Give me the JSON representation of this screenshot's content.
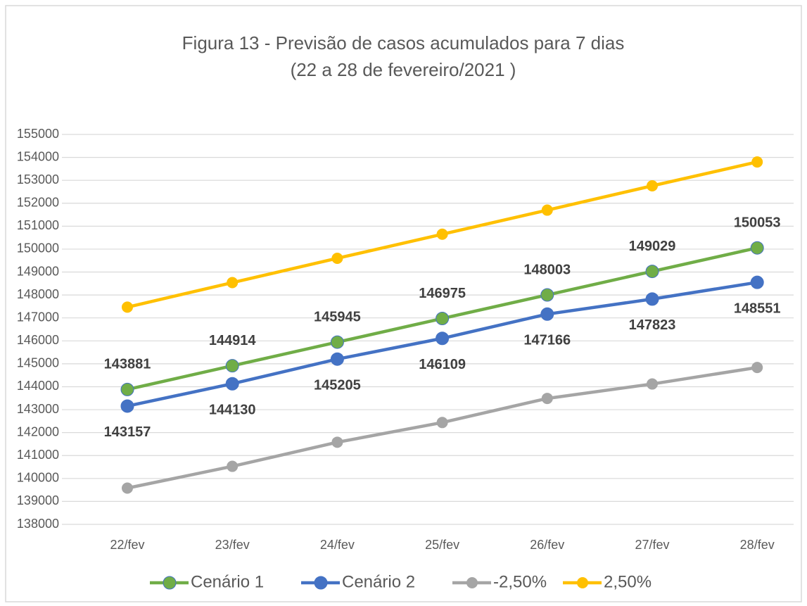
{
  "chart_data": {
    "type": "line",
    "title": "Figura 13 - Previsão de casos acumulados para 7 dias",
    "subtitle": "(22 a 28 de fevereiro/2021 )",
    "categories": [
      "22/fev",
      "23/fev",
      "24/fev",
      "25/fev",
      "26/fev",
      "27/fev",
      "28/fev"
    ],
    "series": [
      {
        "name": "Cenário 1",
        "color": "#70ad47",
        "values": [
          143881,
          144914,
          145945,
          146975,
          148003,
          149029,
          150053
        ],
        "data_labels": "above"
      },
      {
        "name": "Cenário 2",
        "color": "#4472c4",
        "values": [
          143157,
          144130,
          145205,
          146109,
          147166,
          147823,
          148551
        ],
        "data_labels": "below"
      },
      {
        "name": "-2,50%",
        "color": "#a5a5a5",
        "values": [
          139580,
          140530,
          141580,
          142440,
          143490,
          144120,
          144840
        ]
      },
      {
        "name": "2,50%",
        "color": "#ffc000",
        "values": [
          147470,
          148540,
          149600,
          150650,
          151700,
          152760,
          153800
        ]
      }
    ],
    "ylim": [
      138000,
      155000
    ],
    "yticks": [
      138000,
      139000,
      140000,
      141000,
      142000,
      143000,
      144000,
      145000,
      146000,
      147000,
      148000,
      149000,
      150000,
      151000,
      152000,
      153000,
      154000,
      155000
    ],
    "grid": true,
    "legend": "bottom"
  }
}
